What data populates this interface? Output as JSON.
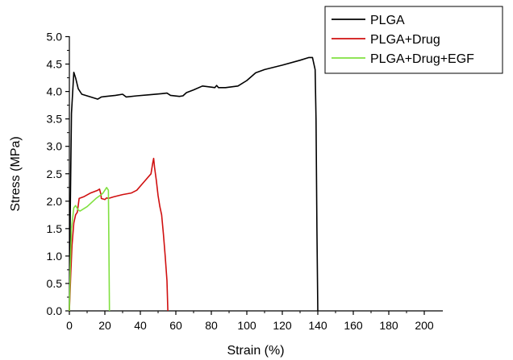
{
  "chart_data": {
    "type": "line",
    "title": "",
    "xlabel": "Strain (%)",
    "ylabel": "Stress (MPa)",
    "xlim": [
      0,
      210
    ],
    "ylim": [
      0,
      5.0
    ],
    "x_ticks": [
      0,
      20,
      40,
      60,
      80,
      100,
      120,
      140,
      160,
      180,
      200
    ],
    "y_ticks": [
      0.0,
      0.5,
      1.0,
      1.5,
      2.0,
      2.5,
      3.0,
      3.5,
      4.0,
      4.5,
      5.0
    ],
    "grid": false,
    "legend_position": "top-right",
    "series": [
      {
        "name": "PLGA",
        "color": "#000000",
        "points": [
          [
            0,
            0
          ],
          [
            0.5,
            1.8
          ],
          [
            1.2,
            3.6
          ],
          [
            2.5,
            4.35
          ],
          [
            3.5,
            4.25
          ],
          [
            5,
            4.05
          ],
          [
            7,
            3.95
          ],
          [
            12,
            3.9
          ],
          [
            16,
            3.86
          ],
          [
            18,
            3.9
          ],
          [
            26,
            3.93
          ],
          [
            30,
            3.95
          ],
          [
            32,
            3.9
          ],
          [
            38,
            3.92
          ],
          [
            45,
            3.94
          ],
          [
            52,
            3.96
          ],
          [
            55,
            3.97
          ],
          [
            57,
            3.93
          ],
          [
            62,
            3.91
          ],
          [
            64,
            3.92
          ],
          [
            66,
            3.98
          ],
          [
            70,
            4.03
          ],
          [
            75,
            4.1
          ],
          [
            80,
            4.08
          ],
          [
            82,
            4.07
          ],
          [
            83,
            4.11
          ],
          [
            84,
            4.07
          ],
          [
            88,
            4.07
          ],
          [
            95,
            4.1
          ],
          [
            100,
            4.2
          ],
          [
            105,
            4.34
          ],
          [
            110,
            4.4
          ],
          [
            120,
            4.48
          ],
          [
            130,
            4.57
          ],
          [
            135,
            4.62
          ],
          [
            137,
            4.62
          ],
          [
            138.5,
            4.4
          ],
          [
            139,
            3.5
          ],
          [
            139.5,
            1.5
          ],
          [
            140,
            0
          ]
        ]
      },
      {
        "name": "PLGA+Drug",
        "color": "#d01010",
        "points": [
          [
            0,
            0
          ],
          [
            0.8,
            0.7
          ],
          [
            1.5,
            1.2
          ],
          [
            2.5,
            1.6
          ],
          [
            3.5,
            1.75
          ],
          [
            4.5,
            1.8
          ],
          [
            5.5,
            2.05
          ],
          [
            8,
            2.08
          ],
          [
            12,
            2.15
          ],
          [
            16,
            2.2
          ],
          [
            17,
            2.22
          ],
          [
            17.8,
            2.12
          ],
          [
            18,
            2.05
          ],
          [
            20,
            2.03
          ],
          [
            21,
            2.06
          ],
          [
            22,
            2.05
          ],
          [
            25,
            2.08
          ],
          [
            30,
            2.12
          ],
          [
            35,
            2.15
          ],
          [
            38,
            2.2
          ],
          [
            42,
            2.35
          ],
          [
            46,
            2.5
          ],
          [
            47,
            2.7
          ],
          [
            47.5,
            2.78
          ],
          [
            48,
            2.62
          ],
          [
            48.5,
            2.5
          ],
          [
            49,
            2.38
          ],
          [
            50,
            2.1
          ],
          [
            51,
            1.9
          ],
          [
            52,
            1.75
          ],
          [
            53,
            1.4
          ],
          [
            54,
            1.0
          ],
          [
            55,
            0.55
          ],
          [
            55.5,
            0
          ]
        ]
      },
      {
        "name": "PLGA+Drug+EGF",
        "color": "#80e040",
        "points": [
          [
            0,
            0
          ],
          [
            0.5,
            0.8
          ],
          [
            1.2,
            1.5
          ],
          [
            2.5,
            1.88
          ],
          [
            3.5,
            1.92
          ],
          [
            5,
            1.84
          ],
          [
            6,
            1.82
          ],
          [
            10,
            1.9
          ],
          [
            15,
            2.05
          ],
          [
            18,
            2.12
          ],
          [
            19,
            2.15
          ],
          [
            20,
            2.2
          ],
          [
            21,
            2.25
          ],
          [
            22,
            2.2
          ],
          [
            22.6,
            0
          ]
        ]
      }
    ]
  }
}
